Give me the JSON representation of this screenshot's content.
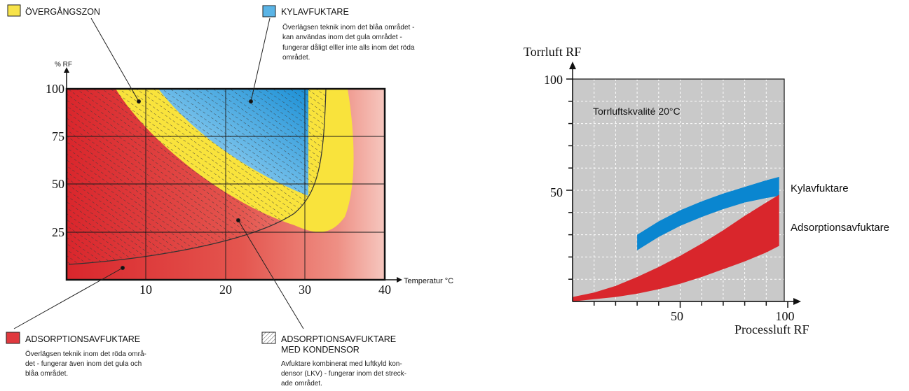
{
  "legend": {
    "transition": {
      "title": "ÖVERGÅNGSZON",
      "color": "#f7e34a"
    },
    "cooling": {
      "title": "KYLAVFUKTARE",
      "color": "#5ab4e6",
      "desc": [
        "Överlägsen teknik inom det blåa området -",
        "kan användas inom det  gula området -",
        "fungerar dåligt elller inte alls inom det röda",
        "området."
      ]
    },
    "adsorption": {
      "title": "ADSORPTIONSAVFUKTARE",
      "color": "#e0393e",
      "desc": [
        "Överlägsen teknik inom det röda områ-",
        "det - fungerar även inom det gula och",
        "blåa området."
      ]
    },
    "condenser": {
      "title_lines": [
        "ADSORPTIONSAVFUKTARE",
        "MED KONDENSOR"
      ],
      "desc": [
        "Avfuktare kombinerat med luftkyld kon-",
        "densor (LKV) - fungerar inom det streck-",
        "ade området."
      ]
    }
  },
  "chart_data": [
    {
      "type": "area",
      "xlabel": "Temperatur °C",
      "ylabel": "% RF",
      "xlim": [
        0,
        40
      ],
      "ylim": [
        0,
        100
      ],
      "x_ticks": [
        "10",
        "20",
        "30",
        "40"
      ],
      "y_ticks": [
        "100",
        "75",
        "50",
        "25"
      ],
      "grid": true,
      "series": [
        {
          "name": "ADSORPTIONSAVFUKTARE",
          "color": "#e0393e"
        },
        {
          "name": "ÖVERGÅNGSZON",
          "color": "#f7e34a"
        },
        {
          "name": "KYLAVFUKTARE",
          "color": "#5ab4e6"
        },
        {
          "name": "ADSORPTIONSAVFUKTARE MED KONDENSOR",
          "color": "#333333"
        }
      ]
    },
    {
      "type": "area",
      "title": "Torrluftskvalité 20°C",
      "xlabel": "Processluft RF",
      "ylabel": "Torrluft RF",
      "xlim": [
        0,
        100
      ],
      "ylim": [
        0,
        100
      ],
      "x_ticks": [
        "50",
        "100"
      ],
      "y_ticks": [
        "100",
        "50"
      ],
      "grid": true,
      "series": [
        {
          "name": "Kylavfuktare",
          "color": "#0a86d0",
          "x": [
            30,
            40,
            50,
            60,
            70,
            80,
            90,
            96
          ],
          "upper": [
            30,
            36,
            41,
            45,
            48.5,
            51.5,
            54.5,
            56
          ],
          "lower": [
            23,
            29,
            34,
            38,
            41.5,
            44.5,
            46.5,
            47.5
          ]
        },
        {
          "name": "Adsorptionsavfuktare",
          "color": "#d9262c",
          "x": [
            0,
            10,
            20,
            30,
            40,
            50,
            60,
            70,
            80,
            90,
            96
          ],
          "upper": [
            2,
            4,
            7,
            11,
            15.5,
            20.5,
            26,
            32,
            38.5,
            44.5,
            48
          ],
          "lower": [
            0,
            1,
            2,
            3.5,
            5.5,
            8,
            11,
            14.5,
            18,
            22,
            25
          ]
        }
      ]
    }
  ]
}
